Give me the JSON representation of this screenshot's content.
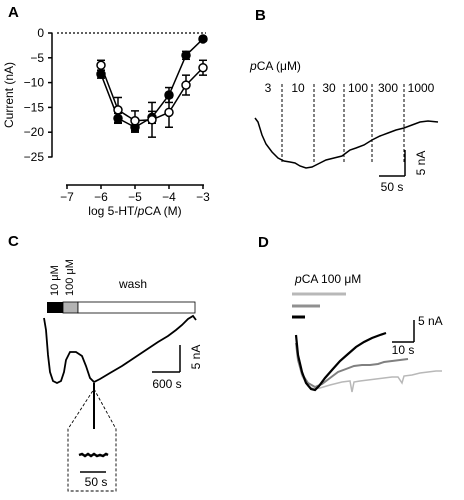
{
  "panels": {
    "A": {
      "letter": "A"
    },
    "B": {
      "letter": "B",
      "header": "pCA (μM)",
      "header_prefix": "p",
      "header_rest": "CA (μM)",
      "scale_y": "5 nA",
      "scale_x": "50 s"
    },
    "C": {
      "letter": "C",
      "label_10": "10 μM",
      "label_100": "100 μM",
      "wash": "wash",
      "scale_y": "5 nA",
      "scale_x": "600 s",
      "inset_scale_x": "50 s"
    },
    "D": {
      "letter": "D",
      "header_prefix": "p",
      "header_rest": "CA 100 μM",
      "scale_y": "5 nA",
      "scale_x": "10 s"
    }
  },
  "chart_data": [
    {
      "panel": "A",
      "type": "scatter",
      "xlabel_prefix": "log 5-HT/",
      "xlabel_italic": "p",
      "xlabel_suffix": "CA (M)",
      "ylabel": "Current (nA)",
      "xlim": [
        -7,
        -3
      ],
      "ylim": [
        -25,
        0
      ],
      "xticks": [
        -7,
        -6,
        -5,
        -4,
        -3
      ],
      "yticks": [
        0,
        -5,
        -10,
        -15,
        -20,
        -25
      ],
      "reference_line_y": 0,
      "series": [
        {
          "marker": "filled",
          "x": [
            -6.0,
            -5.5,
            -5.0,
            -4.5,
            -4.0,
            -3.5,
            -3.0
          ],
          "y": [
            -8.3,
            -17.2,
            -19.0,
            -17.0,
            -12.5,
            -4.5,
            -1.2
          ],
          "err": [
            0.8,
            1.0,
            1.0,
            1.2,
            1.5,
            0.8,
            0.4
          ]
        },
        {
          "marker": "open",
          "x": [
            -6.0,
            -5.5,
            -5.0,
            -4.5,
            -4.0,
            -3.5,
            -3.0
          ],
          "y": [
            -6.5,
            -15.5,
            -17.7,
            -17.5,
            -16.0,
            -10.5,
            -7.0
          ],
          "err": [
            1.0,
            2.5,
            2.0,
            3.5,
            3.0,
            2.0,
            1.5
          ]
        }
      ]
    },
    {
      "panel": "B",
      "type": "line",
      "concentrations": [
        "3",
        "10",
        "30",
        "100",
        "300",
        "1000"
      ]
    }
  ]
}
